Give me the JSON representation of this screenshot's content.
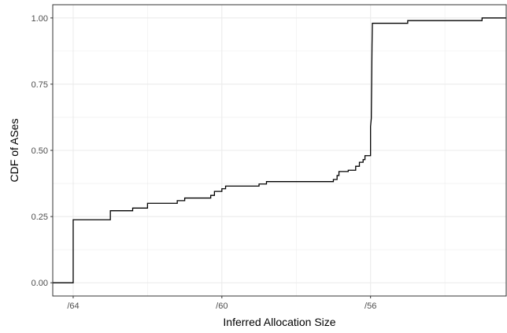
{
  "chart_data": {
    "type": "line",
    "step": true,
    "xlabel": "Inferred Allocation Size",
    "ylabel": "CDF of ASes",
    "x_reversed": true,
    "xlim": [
      64.55,
      52.35
    ],
    "ylim": [
      -0.05,
      1.05
    ],
    "x_ticks": [
      {
        "value": 64,
        "label": "/64"
      },
      {
        "value": 60,
        "label": "/60"
      },
      {
        "value": 56,
        "label": "/56"
      }
    ],
    "y_ticks": [
      {
        "value": 0.0,
        "label": "0.00"
      },
      {
        "value": 0.25,
        "label": "0.25"
      },
      {
        "value": 0.5,
        "label": "0.50"
      },
      {
        "value": 0.75,
        "label": "0.75"
      },
      {
        "value": 1.0,
        "label": "1.00"
      }
    ],
    "grid": true,
    "legend": "none",
    "series": [
      {
        "points": [
          [
            64.55,
            0.0
          ],
          [
            64.0,
            0.0
          ],
          [
            64.0,
            0.238
          ],
          [
            63.0,
            0.238
          ],
          [
            63.0,
            0.272
          ],
          [
            62.4,
            0.272
          ],
          [
            62.4,
            0.282
          ],
          [
            62.0,
            0.282
          ],
          [
            62.0,
            0.3
          ],
          [
            61.2,
            0.3
          ],
          [
            61.2,
            0.31
          ],
          [
            61.0,
            0.31
          ],
          [
            61.0,
            0.32
          ],
          [
            60.3,
            0.32
          ],
          [
            60.3,
            0.33
          ],
          [
            60.2,
            0.33
          ],
          [
            60.2,
            0.345
          ],
          [
            60.0,
            0.345
          ],
          [
            60.0,
            0.355
          ],
          [
            59.9,
            0.355
          ],
          [
            59.9,
            0.365
          ],
          [
            59.0,
            0.365
          ],
          [
            59.0,
            0.373
          ],
          [
            58.8,
            0.373
          ],
          [
            58.8,
            0.382
          ],
          [
            57.0,
            0.382
          ],
          [
            57.0,
            0.39
          ],
          [
            56.9,
            0.39
          ],
          [
            56.9,
            0.405
          ],
          [
            56.85,
            0.405
          ],
          [
            56.85,
            0.42
          ],
          [
            56.6,
            0.42
          ],
          [
            56.6,
            0.425
          ],
          [
            56.4,
            0.425
          ],
          [
            56.4,
            0.44
          ],
          [
            56.3,
            0.44
          ],
          [
            56.3,
            0.455
          ],
          [
            56.2,
            0.455
          ],
          [
            56.2,
            0.465
          ],
          [
            56.15,
            0.465
          ],
          [
            56.15,
            0.48
          ],
          [
            56.0,
            0.48
          ],
          [
            56.0,
            0.59
          ],
          [
            55.98,
            0.62
          ],
          [
            55.97,
            0.75
          ],
          [
            55.96,
            0.9
          ],
          [
            55.95,
            0.98
          ],
          [
            55.0,
            0.98
          ],
          [
            55.0,
            0.99
          ],
          [
            53.0,
            0.99
          ],
          [
            53.0,
            1.0
          ],
          [
            52.35,
            1.0
          ]
        ],
        "color": "#000000"
      }
    ],
    "panel_background": "#ffffff",
    "grid_color": "#ebebeb",
    "border_color": "#333333"
  }
}
